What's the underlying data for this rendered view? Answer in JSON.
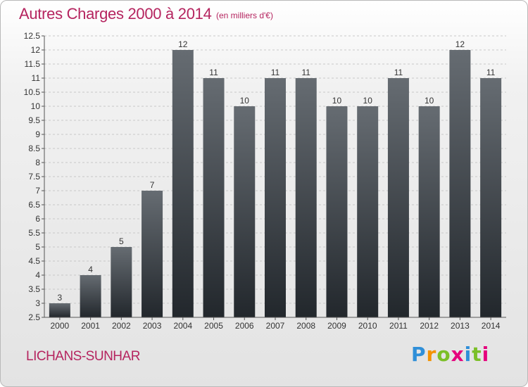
{
  "header": {
    "title": "Autres Charges 2000 à 2014",
    "unit": "(en milliers d'€)"
  },
  "footer": {
    "commune": "LICHANS-SUNHAR",
    "logo_letters": [
      "P",
      "r",
      "o",
      "x",
      "i",
      "t",
      "i"
    ]
  },
  "colors": {
    "accent": "#b5245f",
    "bar_top": "#666c72",
    "bar_bottom": "#22272c",
    "logo": [
      "#2f8fd8",
      "#f39200",
      "#7bbf27",
      "#e5007d",
      "#2f8fd8",
      "#7bbf27",
      "#e5007d"
    ]
  },
  "chart_data": {
    "type": "bar",
    "title": "Autres Charges 2000 à 2014",
    "subtitle": "(en milliers d'€)",
    "xlabel": "",
    "ylabel": "",
    "categories": [
      "2000",
      "2001",
      "2002",
      "2003",
      "2004",
      "2005",
      "2006",
      "2007",
      "2008",
      "2009",
      "2010",
      "2011",
      "2012",
      "2013",
      "2014"
    ],
    "values": [
      3,
      4,
      5,
      7,
      12,
      11,
      10,
      11,
      11,
      10,
      10,
      11,
      10,
      12,
      11
    ],
    "data_labels": [
      "3",
      "4",
      "5",
      "7",
      "12",
      "11",
      "10",
      "11",
      "11",
      "10",
      "10",
      "11",
      "10",
      "12",
      "11"
    ],
    "ylim": [
      2.5,
      12.5
    ],
    "yticks": [
      "2.5",
      "3",
      "3.5",
      "4",
      "4.5",
      "5",
      "5.5",
      "6",
      "6.5",
      "7",
      "7.5",
      "8",
      "8.5",
      "9",
      "9.5",
      "10",
      "10.5",
      "11",
      "11.5",
      "12",
      "12.5"
    ],
    "grid": true,
    "legend": "none"
  }
}
